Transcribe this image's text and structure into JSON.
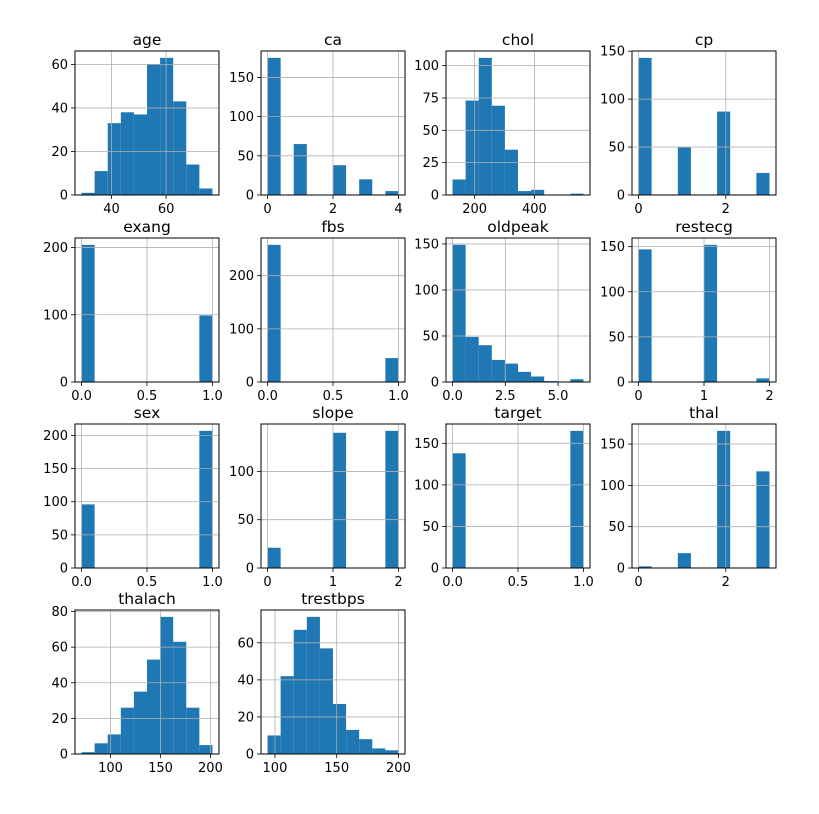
{
  "colors": {
    "bar": "#1f77b4",
    "grid": "#b0b0b0",
    "axis": "#000000"
  },
  "chart_data": [
    {
      "type": "bar",
      "title": "age",
      "bins_range": [
        29,
        77
      ],
      "values": [
        1,
        11,
        33,
        38,
        37,
        60,
        63,
        43,
        14,
        3
      ],
      "xticks": [
        40,
        60
      ],
      "xtick_labels": [
        "40",
        "60"
      ],
      "yticks": [
        0,
        20,
        40,
        60
      ],
      "ytick_labels": [
        "0",
        "20",
        "40",
        "60"
      ],
      "grid": true
    },
    {
      "type": "bar",
      "title": "ca",
      "bins_range": [
        0,
        4
      ],
      "values": [
        175,
        0,
        65,
        0,
        0,
        38,
        0,
        20,
        0,
        5
      ],
      "xticks": [
        0,
        2,
        4
      ],
      "xtick_labels": [
        "0",
        "2",
        "4"
      ],
      "yticks": [
        0,
        50,
        100,
        150
      ],
      "ytick_labels": [
        "0",
        "50",
        "100",
        "150"
      ],
      "grid": true
    },
    {
      "type": "bar",
      "title": "chol",
      "bins_range": [
        126,
        564
      ],
      "values": [
        12,
        73,
        106,
        69,
        35,
        3,
        4,
        0,
        0,
        1
      ],
      "xticks": [
        200,
        400
      ],
      "xtick_labels": [
        "200",
        "400"
      ],
      "yticks": [
        0,
        25,
        50,
        75,
        100
      ],
      "ytick_labels": [
        "0",
        "25",
        "50",
        "75",
        "100"
      ],
      "grid": true
    },
    {
      "type": "bar",
      "title": "cp",
      "bins_range": [
        0,
        3
      ],
      "values": [
        143,
        0,
        0,
        50,
        0,
        0,
        87,
        0,
        0,
        23
      ],
      "xticks": [
        0,
        2
      ],
      "xtick_labels": [
        "0",
        "2"
      ],
      "yticks": [
        0,
        50,
        100,
        150
      ],
      "ytick_labels": [
        "0",
        "50",
        "100",
        "150"
      ],
      "grid": true
    },
    {
      "type": "bar",
      "title": "exang",
      "bins_range": [
        0,
        1
      ],
      "values": [
        204,
        0,
        0,
        0,
        0,
        0,
        0,
        0,
        0,
        99
      ],
      "xticks": [
        0,
        0.5,
        1
      ],
      "xtick_labels": [
        "0.0",
        "0.5",
        "1.0"
      ],
      "yticks": [
        0,
        100,
        200
      ],
      "ytick_labels": [
        "0",
        "100",
        "200"
      ],
      "grid": true
    },
    {
      "type": "bar",
      "title": "fbs",
      "bins_range": [
        0,
        1
      ],
      "values": [
        258,
        0,
        0,
        0,
        0,
        0,
        0,
        0,
        0,
        45
      ],
      "xticks": [
        0,
        0.5,
        1
      ],
      "xtick_labels": [
        "0.0",
        "0.5",
        "1.0"
      ],
      "yticks": [
        0,
        100,
        200
      ],
      "ytick_labels": [
        "0",
        "100",
        "200"
      ],
      "grid": true
    },
    {
      "type": "bar",
      "title": "oldpeak",
      "bins_range": [
        0,
        6.2
      ],
      "values": [
        149,
        49,
        40,
        24,
        20,
        11,
        6,
        1,
        0,
        3
      ],
      "xticks": [
        0,
        2.5,
        5
      ],
      "xtick_labels": [
        "0.0",
        "2.5",
        "5.0"
      ],
      "yticks": [
        0,
        50,
        100,
        150
      ],
      "ytick_labels": [
        "0",
        "50",
        "100",
        "150"
      ],
      "grid": true
    },
    {
      "type": "bar",
      "title": "restecg",
      "bins_range": [
        0,
        2
      ],
      "values": [
        147,
        0,
        0,
        0,
        0,
        152,
        0,
        0,
        0,
        4
      ],
      "xticks": [
        0,
        1,
        2
      ],
      "xtick_labels": [
        "0",
        "1",
        "2"
      ],
      "yticks": [
        0,
        50,
        100,
        150
      ],
      "ytick_labels": [
        "0",
        "50",
        "100",
        "150"
      ],
      "grid": true
    },
    {
      "type": "bar",
      "title": "sex",
      "bins_range": [
        0,
        1
      ],
      "values": [
        96,
        0,
        0,
        0,
        0,
        0,
        0,
        0,
        0,
        207
      ],
      "xticks": [
        0,
        0.5,
        1
      ],
      "xtick_labels": [
        "0.0",
        "0.5",
        "1.0"
      ],
      "yticks": [
        0,
        50,
        100,
        150,
        200
      ],
      "ytick_labels": [
        "0",
        "50",
        "100",
        "150",
        "200"
      ],
      "grid": true
    },
    {
      "type": "bar",
      "title": "slope",
      "bins_range": [
        0,
        2
      ],
      "values": [
        21,
        0,
        0,
        0,
        0,
        140,
        0,
        0,
        0,
        142
      ],
      "xticks": [
        0,
        1,
        2
      ],
      "xtick_labels": [
        "0",
        "1",
        "2"
      ],
      "yticks": [
        0,
        50,
        100
      ],
      "ytick_labels": [
        "0",
        "50",
        "100"
      ],
      "grid": true
    },
    {
      "type": "bar",
      "title": "target",
      "bins_range": [
        0,
        1
      ],
      "values": [
        138,
        0,
        0,
        0,
        0,
        0,
        0,
        0,
        0,
        165
      ],
      "xticks": [
        0,
        0.5,
        1
      ],
      "xtick_labels": [
        "0.0",
        "0.5",
        "1.0"
      ],
      "yticks": [
        0,
        50,
        100,
        150
      ],
      "ytick_labels": [
        "0",
        "50",
        "100",
        "150"
      ],
      "grid": true
    },
    {
      "type": "bar",
      "title": "thal",
      "bins_range": [
        0,
        3
      ],
      "values": [
        2,
        0,
        0,
        18,
        0,
        0,
        166,
        0,
        0,
        117
      ],
      "xticks": [
        0,
        2
      ],
      "xtick_labels": [
        "0",
        "2"
      ],
      "yticks": [
        0,
        50,
        100,
        150
      ],
      "ytick_labels": [
        "0",
        "50",
        "100",
        "150"
      ],
      "grid": true
    },
    {
      "type": "bar",
      "title": "thalach",
      "bins_range": [
        71,
        202
      ],
      "values": [
        1,
        6,
        11,
        26,
        35,
        53,
        77,
        63,
        26,
        5
      ],
      "xticks": [
        100,
        150,
        200
      ],
      "xtick_labels": [
        "100",
        "150",
        "200"
      ],
      "yticks": [
        0,
        20,
        40,
        60,
        80
      ],
      "ytick_labels": [
        "0",
        "20",
        "40",
        "60",
        "80"
      ],
      "grid": true
    },
    {
      "type": "bar",
      "title": "trestbps",
      "bins_range": [
        94,
        200
      ],
      "values": [
        10,
        42,
        67,
        74,
        57,
        27,
        13,
        8,
        3,
        2
      ],
      "xticks": [
        100,
        150,
        200
      ],
      "xtick_labels": [
        "100",
        "150",
        "200"
      ],
      "yticks": [
        0,
        20,
        40,
        60
      ],
      "ytick_labels": [
        "0",
        "20",
        "40",
        "60"
      ],
      "grid": true
    }
  ]
}
